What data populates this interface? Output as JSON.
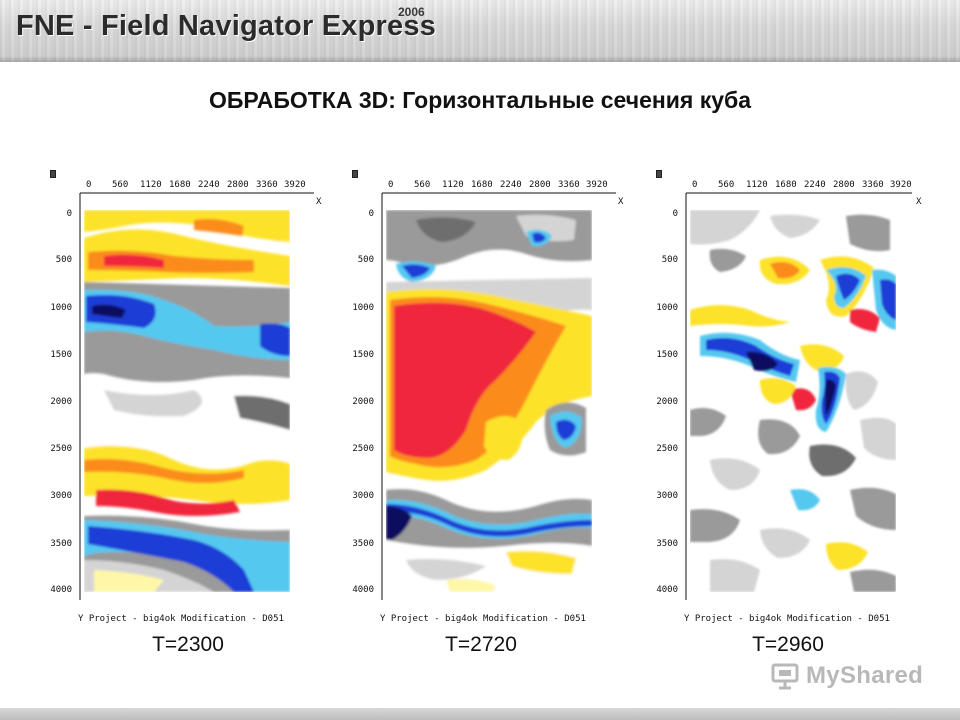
{
  "header": {
    "title": "FNE - Field Navigator Express",
    "year": "2006",
    "accent": "#2b2b2b"
  },
  "page_title": "ОБРАБОТКА 3D: Горизонтальные сечения куба",
  "slices": [
    {
      "time_label": "T=2300",
      "x_ticks": [
        "0",
        "560",
        "1120",
        "1680",
        "2240",
        "2800",
        "3360",
        "3920"
      ],
      "x_axis_label": "X",
      "y_ticks": [
        "0",
        "500",
        "1000",
        "1500",
        "2000",
        "2500",
        "3000",
        "3500",
        "4000"
      ],
      "caption": "Y  Project - big4ok  Modification - D051"
    },
    {
      "time_label": "T=2720",
      "x_ticks": [
        "0",
        "560",
        "1120",
        "1680",
        "2240",
        "2800",
        "3360",
        "3920"
      ],
      "x_axis_label": "X",
      "y_ticks": [
        "0",
        "500",
        "1000",
        "1500",
        "2000",
        "2500",
        "3000",
        "3500",
        "4000"
      ],
      "caption": "Y  Project - big4ok  Modification - D051"
    },
    {
      "time_label": "T=2960",
      "x_ticks": [
        "0",
        "560",
        "1120",
        "1680",
        "2240",
        "2800",
        "3360",
        "3920"
      ],
      "x_axis_label": "X",
      "y_ticks": [
        "0",
        "500",
        "1000",
        "1500",
        "2000",
        "2500",
        "3000",
        "3500",
        "4000"
      ],
      "caption": "Y  Project - big4ok  Modification - D051"
    }
  ],
  "palette": {
    "red": "#f0283c",
    "orange": "#fb8c1e",
    "yellow": "#fde22a",
    "pale_yellow": "#fff7a8",
    "white": "#ffffff",
    "light_gray": "#d4d4d4",
    "gray": "#9a9a9a",
    "dark_gray": "#6e6e6e",
    "cyan": "#55c8f0",
    "blue": "#1f3cd6",
    "dark_blue": "#0a0a60"
  },
  "watermark": {
    "text": "MyShared",
    "icon": "presentation-board-icon"
  }
}
